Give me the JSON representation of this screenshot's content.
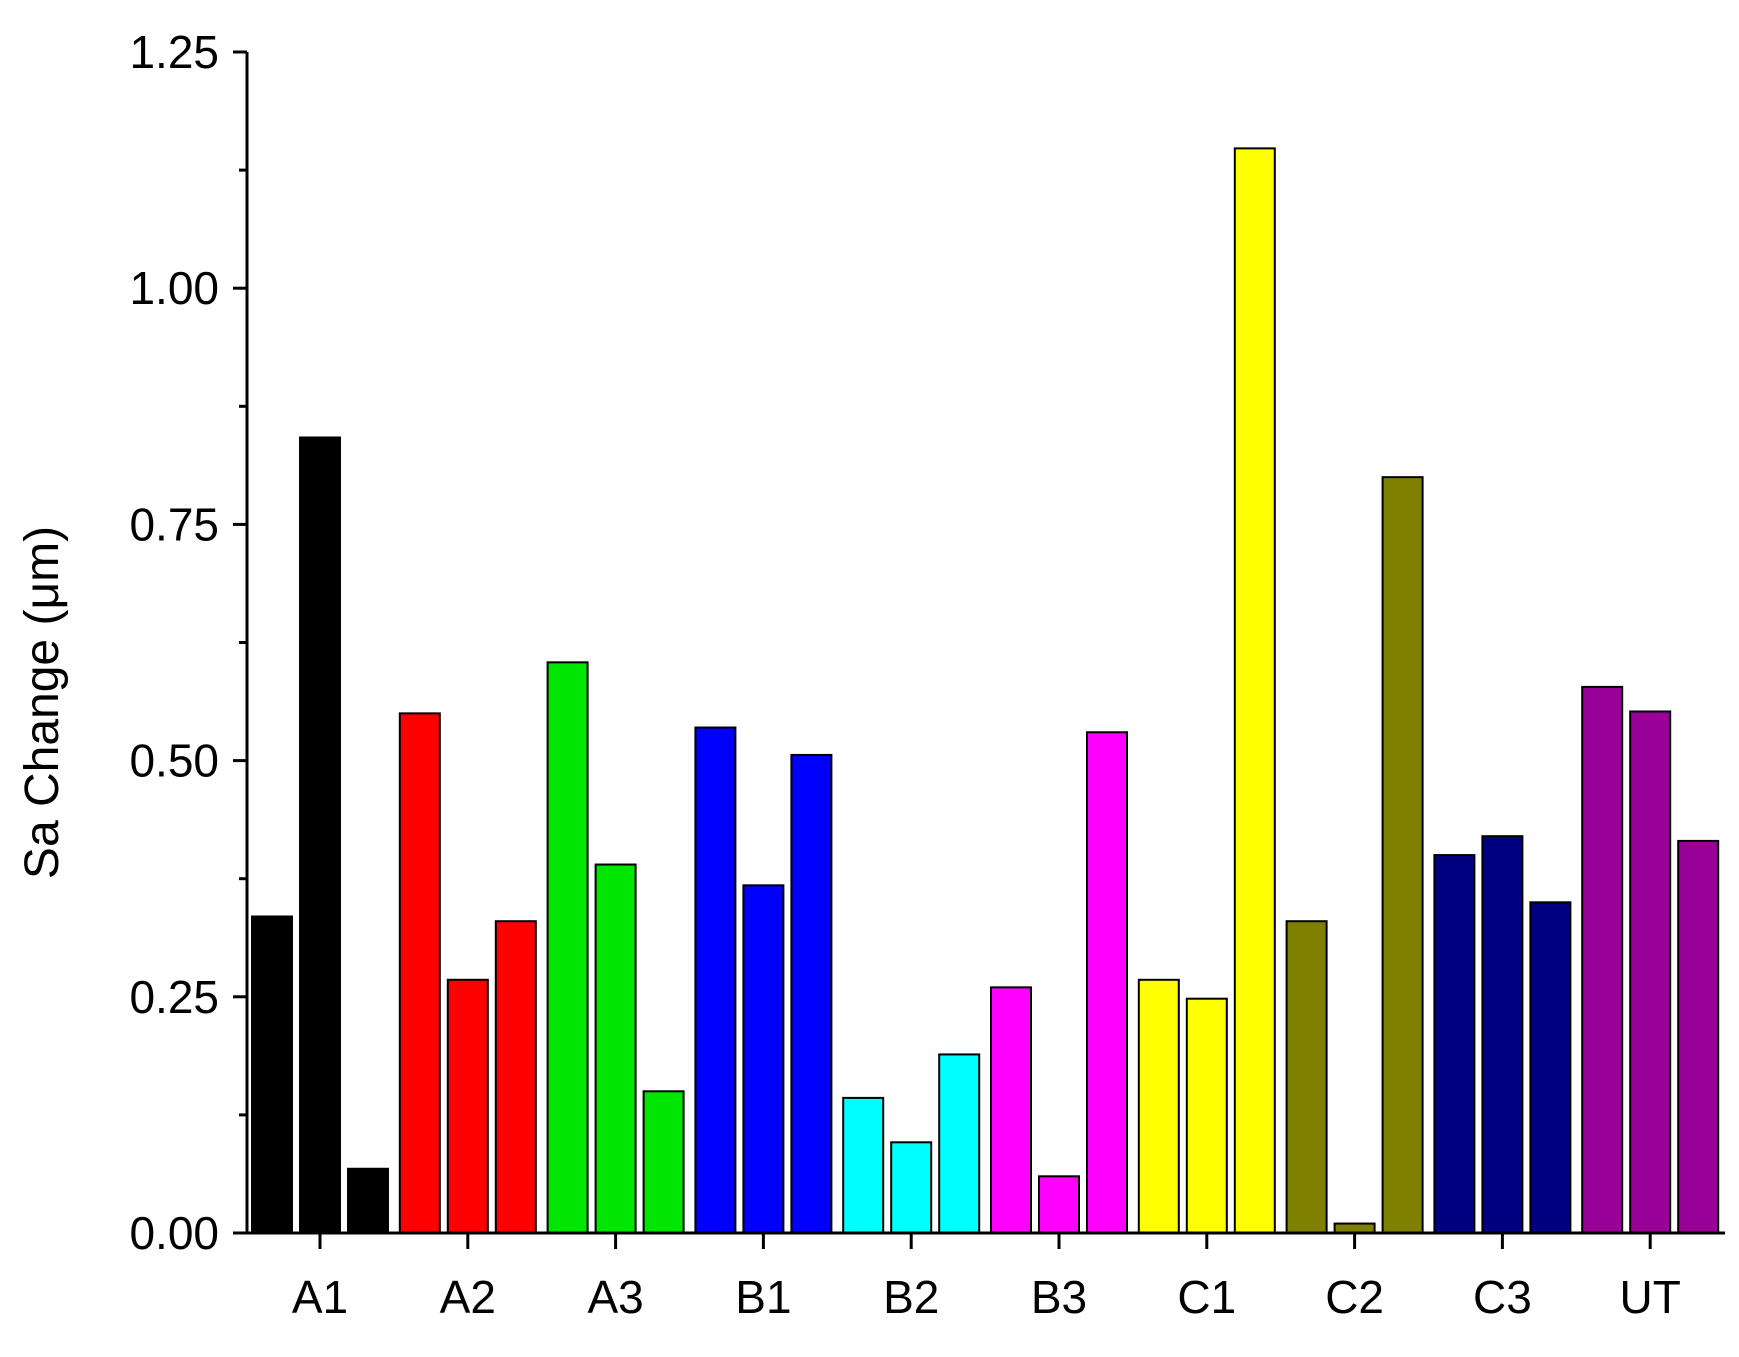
{
  "chart_data": {
    "type": "bar",
    "title": "",
    "xlabel": "",
    "ylabel": "Sa Change (μm)",
    "ylim": [
      0,
      1.25
    ],
    "yticks": [
      0.0,
      0.25,
      0.5,
      0.75,
      1.0,
      1.25
    ],
    "ytick_labels": [
      "0.00",
      "0.25",
      "0.50",
      "0.75",
      "1.00",
      "1.25"
    ],
    "grid": false,
    "legend": "none",
    "categories": [
      "A1",
      "A2",
      "A3",
      "B1",
      "B2",
      "B3",
      "C1",
      "C2",
      "C3",
      "UT"
    ],
    "groups": [
      {
        "category": "A1",
        "color": "#000000",
        "values": [
          0.335,
          0.842,
          0.068
        ]
      },
      {
        "category": "A2",
        "color": "#ff0000",
        "values": [
          0.55,
          0.268,
          0.33
        ]
      },
      {
        "category": "A3",
        "color": "#00e600",
        "values": [
          0.604,
          0.39,
          0.15
        ]
      },
      {
        "category": "B1",
        "color": "#0000ff",
        "values": [
          0.535,
          0.368,
          0.506
        ]
      },
      {
        "category": "B2",
        "color": "#00ffff",
        "values": [
          0.143,
          0.096,
          0.189
        ]
      },
      {
        "category": "B3",
        "color": "#ff00ff",
        "values": [
          0.26,
          0.06,
          0.53
        ]
      },
      {
        "category": "C1",
        "color": "#ffff00",
        "values": [
          0.268,
          0.248,
          1.148
        ]
      },
      {
        "category": "C2",
        "color": "#808000",
        "values": [
          0.33,
          0.01,
          0.8
        ]
      },
      {
        "category": "C3",
        "color": "#000080",
        "values": [
          0.4,
          0.42,
          0.35
        ]
      },
      {
        "category": "UT",
        "color": "#990099",
        "values": [
          0.578,
          0.552,
          0.415
        ]
      }
    ]
  }
}
